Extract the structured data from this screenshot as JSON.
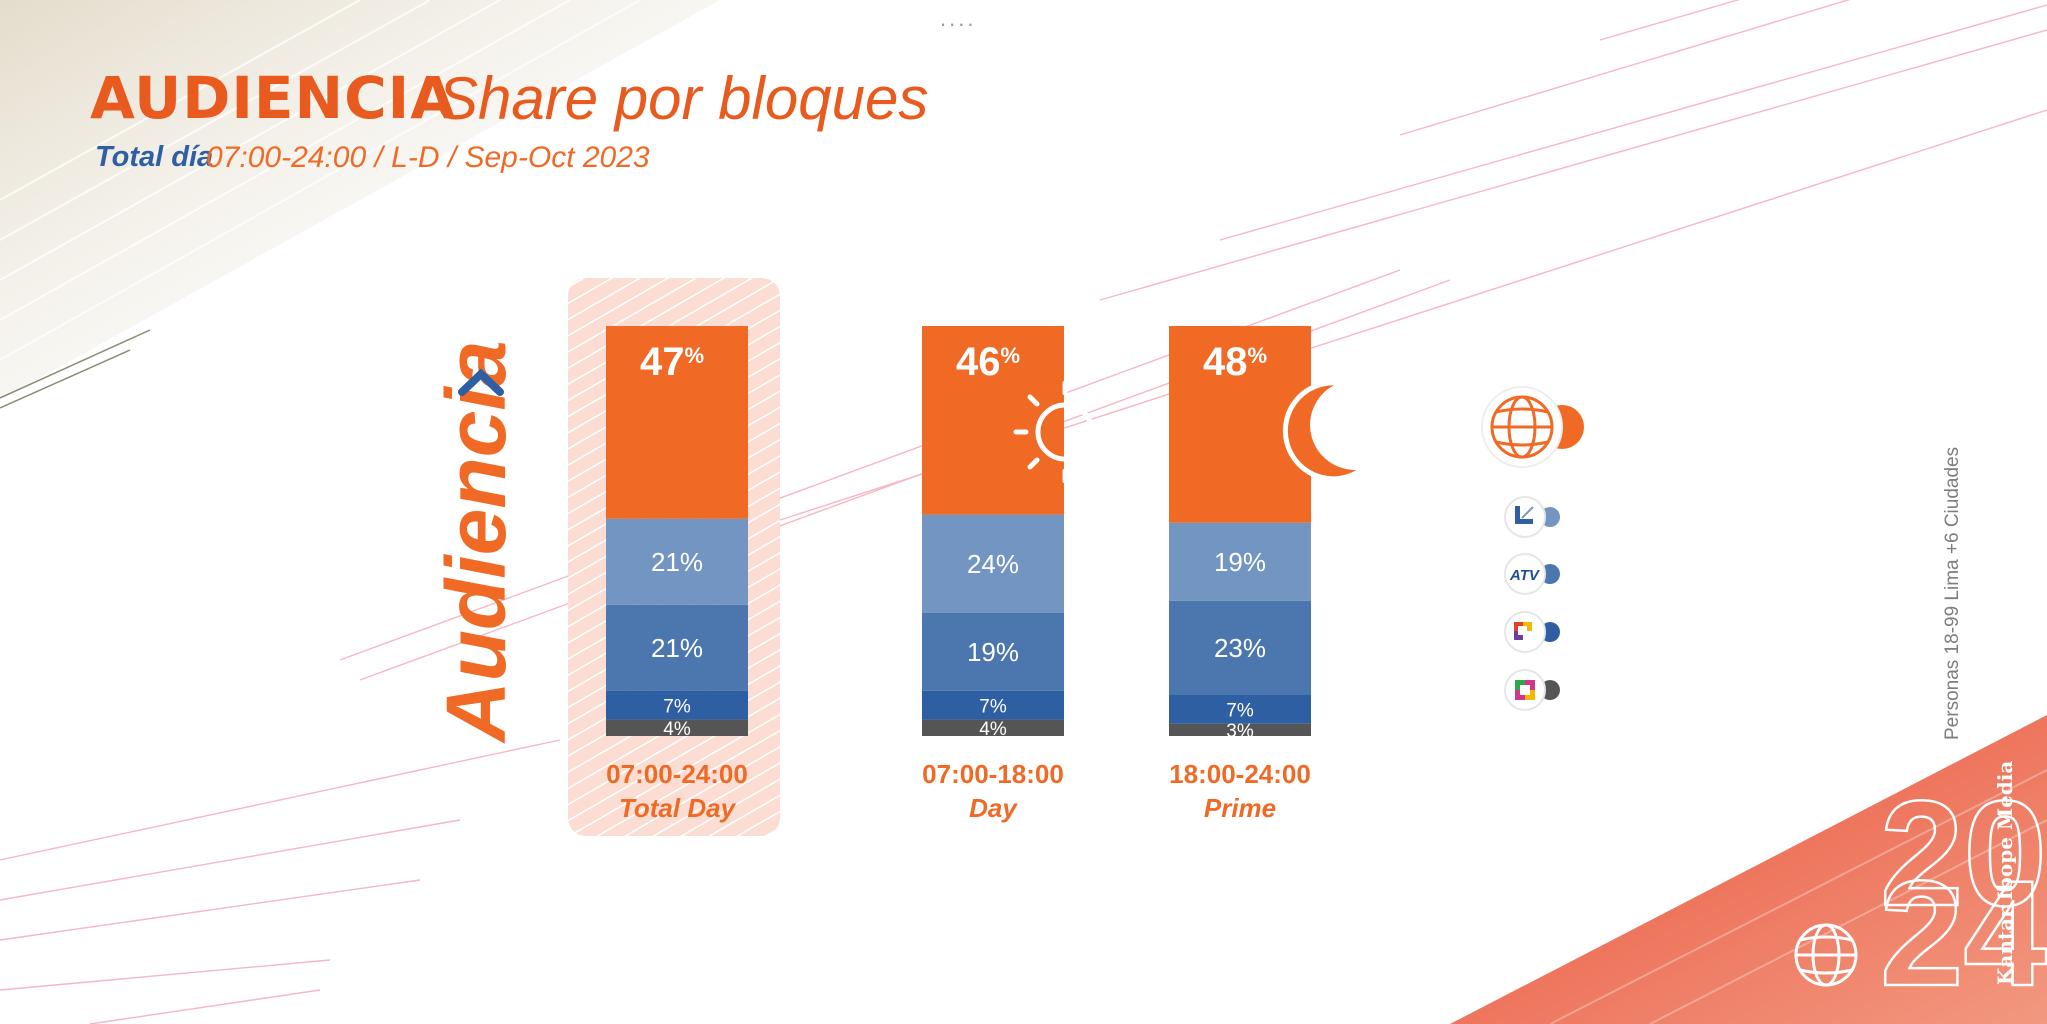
{
  "header": {
    "title": "AUDIENCIA",
    "subtitle": "Share por bloques",
    "subheading_label": "Total día",
    "subheading_range": "07:00-24:00 / L-D / Sep-Oct 2023",
    "top_dots": "...."
  },
  "vertical_title": "Audiencia",
  "footer": {
    "credit": "Personas 18-99 Lima +6 Ciudades",
    "source": "Kantar Ibope Media",
    "year_top": "20",
    "year_bottom": "24"
  },
  "colors": {
    "accent": "#F06A25",
    "title": "#E85A1E",
    "blue_dark": "#2F5FA3",
    "blue_mid": "#4B76AE",
    "blue_light": "#7395C1",
    "gray": "#555555"
  },
  "chart_data": {
    "type": "bar",
    "stacked": true,
    "percent_suffix": "%",
    "categories": [
      "07:00-24:00",
      "07:00-18:00",
      "18:00-24:00"
    ],
    "category_sublabels": [
      "Total Day",
      "Day",
      "Prime"
    ],
    "highlighted_category": "07:00-24:00",
    "category_icons": [
      null,
      "sun-icon",
      "moon-icon"
    ],
    "series": [
      {
        "name": "globe",
        "icon": "globe-icon",
        "color": "#F06A25",
        "values": [
          47,
          46,
          48
        ]
      },
      {
        "name": "latina",
        "icon": "latina-logo-icon",
        "color": "#7395C1",
        "values": [
          21,
          24,
          19
        ]
      },
      {
        "name": "atv",
        "icon": "atv-logo-icon",
        "color": "#4B76AE",
        "values": [
          21,
          19,
          23
        ]
      },
      {
        "name": "panamericana",
        "icon": "panamericana-logo-icon",
        "color": "#2F5FA3",
        "values": [
          7,
          7,
          7
        ]
      },
      {
        "name": "tv-peru",
        "icon": "tvperu-logo-icon",
        "color": "#555555",
        "values": [
          4,
          4,
          3
        ]
      }
    ],
    "ylim": [
      0,
      100
    ]
  }
}
